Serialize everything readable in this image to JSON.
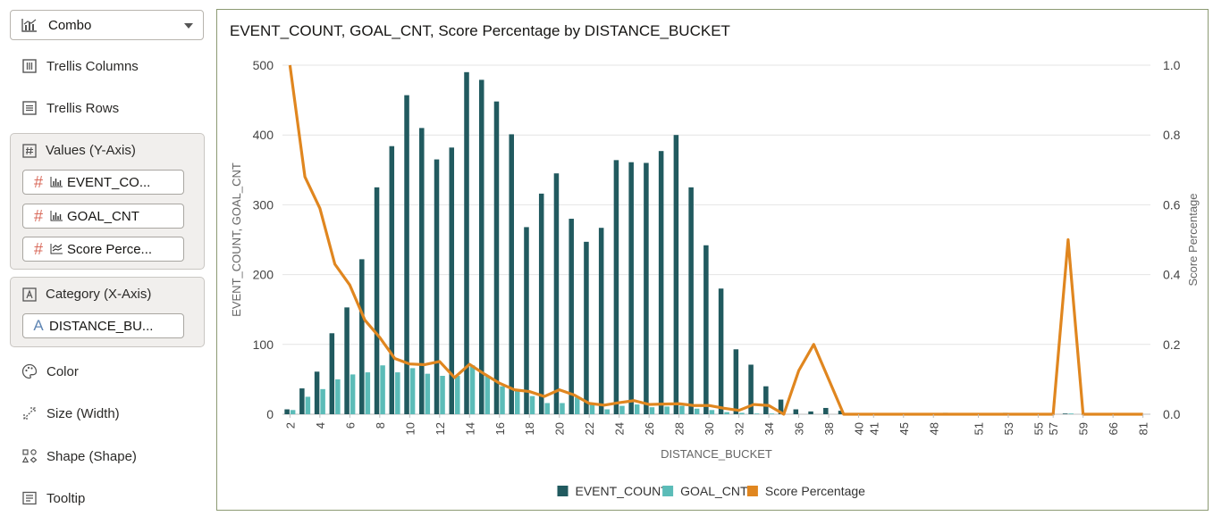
{
  "panel": {
    "chart_type": "Combo",
    "trellis_columns": "Trellis Columns",
    "trellis_rows": "Trellis Rows",
    "values_title": "Values (Y-Axis)",
    "values": [
      "EVENT_CO...",
      "GOAL_CNT",
      "Score Perce..."
    ],
    "category_title": "Category (X-Axis)",
    "category": "DISTANCE_BU...",
    "color": "Color",
    "size": "Size (Width)",
    "shape": "Shape (Shape)",
    "tooltip": "Tooltip"
  },
  "colors": {
    "event": "#215a5f",
    "goal": "#5bbcb8",
    "score": "#e0861f",
    "accent_hash": "#d96b5c"
  },
  "chart_data": {
    "type": "bar",
    "title": "EVENT_COUNT, GOAL_CNT, Score Percentage by DISTANCE_BUCKET",
    "xlabel": "DISTANCE_BUCKET",
    "ylabel": "EVENT_COUNT, GOAL_CNT",
    "y2label": "Score Percentage",
    "ylim": [
      0,
      500
    ],
    "y2lim": [
      0,
      1.0
    ],
    "yticks": [
      "0",
      "100",
      "200",
      "300",
      "400",
      "500"
    ],
    "y2ticks": [
      "0.0",
      "0.2",
      "0.4",
      "0.6",
      "0.8",
      "1.0"
    ],
    "legend_position": "bottom",
    "categories": [
      "2",
      "3",
      "4",
      "5",
      "6",
      "7",
      "8",
      "9",
      "10",
      "11",
      "12",
      "13",
      "14",
      "15",
      "16",
      "17",
      "18",
      "19",
      "20",
      "21",
      "22",
      "23",
      "24",
      "25",
      "26",
      "27",
      "28",
      "29",
      "30",
      "31",
      "32",
      "33",
      "34",
      "35",
      "36",
      "37",
      "38",
      "39",
      "40",
      "41",
      "42",
      "45",
      "46",
      "48",
      "49",
      "50",
      "51",
      "52",
      "53",
      "54",
      "55",
      "57",
      "58",
      "59",
      "60",
      "66",
      "78",
      "81"
    ],
    "tick_labels": [
      "2",
      "4",
      "6",
      "8",
      "10",
      "12",
      "14",
      "16",
      "18",
      "20",
      "22",
      "24",
      "26",
      "28",
      "30",
      "32",
      "34",
      "36",
      "38",
      "40",
      "41",
      "45",
      "48",
      "51",
      "53",
      "55",
      "57",
      "59",
      "66",
      "81"
    ],
    "series": [
      {
        "name": "EVENT_COUNT",
        "kind": "bar",
        "axis": "y",
        "values": [
          7,
          37,
          61,
          116,
          153,
          222,
          325,
          384,
          457,
          410,
          365,
          382,
          490,
          479,
          448,
          401,
          268,
          316,
          345,
          280,
          247,
          267,
          364,
          361,
          360,
          377,
          400,
          325,
          242,
          180,
          93,
          71,
          40,
          21,
          7,
          4,
          9,
          5,
          0,
          0,
          0,
          0,
          0,
          0,
          2,
          0,
          0,
          0,
          2,
          0,
          0,
          0,
          1,
          0,
          0,
          0,
          0,
          0
        ]
      },
      {
        "name": "GOAL_CNT",
        "kind": "bar",
        "axis": "y",
        "values": [
          6,
          25,
          36,
          50,
          57,
          60,
          70,
          60,
          66,
          58,
          55,
          55,
          70,
          55,
          40,
          35,
          26,
          16,
          16,
          24,
          14,
          7,
          12,
          14,
          10,
          11,
          12,
          8,
          6,
          3,
          2,
          1,
          1,
          0,
          0,
          0,
          0,
          0,
          0,
          0,
          0,
          0,
          0,
          0,
          0,
          0,
          0,
          0,
          0,
          0,
          0,
          0,
          1,
          0,
          0,
          0,
          0,
          0
        ]
      },
      {
        "name": "Score Percentage",
        "kind": "line",
        "axis": "y2",
        "values": [
          1.0,
          0.68,
          0.59,
          0.43,
          0.37,
          0.27,
          0.22,
          0.16,
          0.144,
          0.142,
          0.151,
          0.105,
          0.143,
          0.115,
          0.089,
          0.07,
          0.065,
          0.051,
          0.07,
          0.055,
          0.031,
          0.026,
          0.033,
          0.039,
          0.028,
          0.029,
          0.03,
          0.025,
          0.025,
          0.017,
          0.011,
          0.028,
          0.025,
          0.0,
          0.125,
          0.2,
          0.1,
          0.0,
          0.0,
          0.0,
          0.0,
          0.0,
          0.0,
          0.0,
          0.0,
          0.0,
          0.0,
          0.0,
          0.0,
          0.0,
          0.0,
          0.0,
          0.5,
          0.0,
          0.0,
          0.0,
          0.0,
          0.0
        ]
      }
    ]
  }
}
